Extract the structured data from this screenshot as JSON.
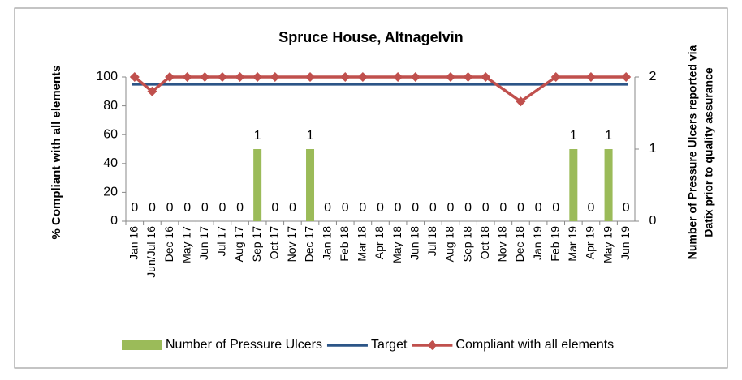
{
  "chart_data": {
    "type": "combo",
    "title": "Spruce House, Altnagelvin",
    "y_label": "% Compliant with all elements",
    "y2_label_lines": [
      "Number of Pressure Ulcers reported via",
      "Datix prior to quality assurance"
    ],
    "categories": [
      "Jan 16",
      "Jun/Jul 16",
      "Dec 16",
      "May 17",
      "Jun 17",
      "Jul 17",
      "Aug 17",
      "Sep 17",
      "Oct 17",
      "Nov 17",
      "Dec 17",
      "Jan 18",
      "Feb 18",
      "Mar 18",
      "Apr 18",
      "May 18",
      "Jun 18",
      "Jul 18",
      "Aug 18",
      "Sep 18",
      "Oct 18",
      "Nov 18",
      "Dec 18",
      "Jan 19",
      "Feb 19",
      "Mar 19",
      "Apr 19",
      "May 19",
      "Jun 19"
    ],
    "series": [
      {
        "name": "Number of Pressure Ulcers",
        "kind": "bar",
        "axis": "y2",
        "color": "#9bbb59",
        "values": [
          0,
          0,
          0,
          0,
          0,
          0,
          0,
          1,
          0,
          0,
          1,
          0,
          0,
          0,
          0,
          0,
          0,
          0,
          0,
          0,
          0,
          0,
          0,
          0,
          0,
          1,
          0,
          1,
          0
        ]
      },
      {
        "name": "Target",
        "kind": "line",
        "color": "#2c5587",
        "values": [
          95,
          95,
          95,
          95,
          95,
          95,
          95,
          95,
          95,
          95,
          95,
          95,
          95,
          95,
          95,
          95,
          95,
          95,
          95,
          95,
          95,
          95,
          95,
          95,
          95,
          95,
          95,
          95,
          95
        ]
      },
      {
        "name": "Compliant with all elements",
        "kind": "line",
        "markers": true,
        "color": "#c0504d",
        "values": [
          100,
          90,
          100,
          100,
          100,
          100,
          100,
          100,
          100,
          null,
          100,
          null,
          100,
          100,
          null,
          100,
          100,
          null,
          100,
          100,
          100,
          null,
          83,
          null,
          100,
          null,
          100,
          null,
          100
        ]
      }
    ],
    "connect_gaps": true,
    "ylim": [
      0,
      100
    ],
    "yticks": [
      0,
      20,
      40,
      60,
      80,
      100
    ],
    "y2lim": [
      0,
      2
    ],
    "y2ticks": [
      0,
      1,
      2
    ],
    "legend": "bottom"
  }
}
